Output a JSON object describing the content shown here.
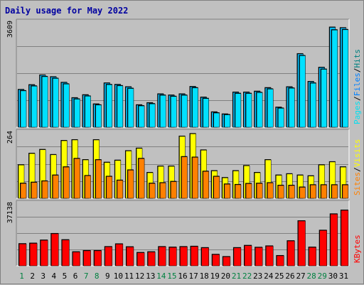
{
  "title": "Daily usage for May 2022",
  "colors": {
    "hits": "#00c0ff",
    "files": "#0080ff",
    "pages": "#00e0f0",
    "visits": "#ffff00",
    "sites": "#ff8000",
    "kbytes": "#ff0000",
    "weekday": "#000000",
    "weekend": "#008040"
  },
  "chart_data": [
    {
      "type": "bar",
      "panel": "hits-files-pages",
      "ymax_label": "3609",
      "legend": [
        "Pages",
        "/",
        "Files",
        "/",
        "Hits"
      ],
      "categories": [
        "1",
        "2",
        "3",
        "4",
        "5",
        "6",
        "7",
        "8",
        "9",
        "10",
        "11",
        "12",
        "13",
        "14",
        "15",
        "16",
        "17",
        "18",
        "19",
        "20",
        "21",
        "22",
        "23",
        "24",
        "25",
        "26",
        "27",
        "28",
        "29",
        "30",
        "31"
      ],
      "series": [
        {
          "name": "Hits",
          "values": [
            1270,
            1430,
            1760,
            1700,
            1510,
            990,
            1090,
            780,
            1490,
            1440,
            1360,
            750,
            820,
            1120,
            1080,
            1120,
            1370,
            1010,
            510,
            440,
            1180,
            1180,
            1210,
            1330,
            670,
            1360,
            2480,
            1540,
            2020,
            3380,
            3360
          ]
        },
        {
          "name": "Files",
          "values": [
            1230,
            1390,
            1710,
            1650,
            1460,
            950,
            1050,
            750,
            1440,
            1400,
            1310,
            720,
            790,
            1080,
            1040,
            1080,
            1330,
            970,
            480,
            420,
            1140,
            1140,
            1170,
            1290,
            640,
            1320,
            2420,
            1490,
            1960,
            3290,
            3300
          ]
        }
      ],
      "ylim": [
        0,
        3609
      ]
    },
    {
      "type": "bar",
      "panel": "visits-sites",
      "ymax_label": "264",
      "legend": [
        "Sites",
        "/",
        "Visits"
      ],
      "categories": [
        "1",
        "2",
        "3",
        "4",
        "5",
        "6",
        "7",
        "8",
        "9",
        "10",
        "11",
        "12",
        "13",
        "14",
        "15",
        "16",
        "17",
        "18",
        "19",
        "20",
        "21",
        "22",
        "23",
        "24",
        "25",
        "26",
        "27",
        "28",
        "29",
        "30",
        "31"
      ],
      "series": [
        {
          "name": "Visits",
          "values": [
            130,
            175,
            190,
            170,
            225,
            228,
            150,
            228,
            140,
            148,
            185,
            195,
            100,
            125,
            125,
            242,
            252,
            188,
            107,
            80,
            107,
            127,
            100,
            150,
            90,
            95,
            90,
            87,
            130,
            142,
            122
          ]
        },
        {
          "name": "Sites",
          "values": [
            58,
            62,
            67,
            90,
            122,
            155,
            88,
            150,
            85,
            70,
            110,
            155,
            58,
            60,
            65,
            162,
            160,
            105,
            85,
            55,
            53,
            57,
            58,
            60,
            50,
            50,
            43,
            52,
            52,
            52,
            52
          ]
        }
      ],
      "ylim": [
        0,
        264
      ]
    },
    {
      "type": "bar",
      "panel": "kbytes",
      "ymax_label": "37138",
      "legend": [
        "KBytes"
      ],
      "categories": [
        "1",
        "2",
        "3",
        "4",
        "5",
        "6",
        "7",
        "8",
        "9",
        "10",
        "11",
        "12",
        "13",
        "14",
        "15",
        "16",
        "17",
        "18",
        "19",
        "20",
        "21",
        "22",
        "23",
        "24",
        "25",
        "26",
        "27",
        "28",
        "29",
        "30",
        "31"
      ],
      "series": [
        {
          "name": "KBytes",
          "values": [
            12700,
            13000,
            14800,
            18600,
            15000,
            8000,
            8700,
            8700,
            11000,
            12600,
            10900,
            7600,
            8000,
            11000,
            10700,
            11000,
            11200,
            10400,
            6500,
            5200,
            10400,
            11700,
            10600,
            11400,
            5800,
            14400,
            26000,
            10700,
            20500,
            30000,
            32200
          ]
        }
      ],
      "ylim": [
        0,
        37138
      ]
    }
  ],
  "weekend_days": [
    1,
    7,
    8,
    14,
    15,
    21,
    22,
    28,
    29
  ]
}
